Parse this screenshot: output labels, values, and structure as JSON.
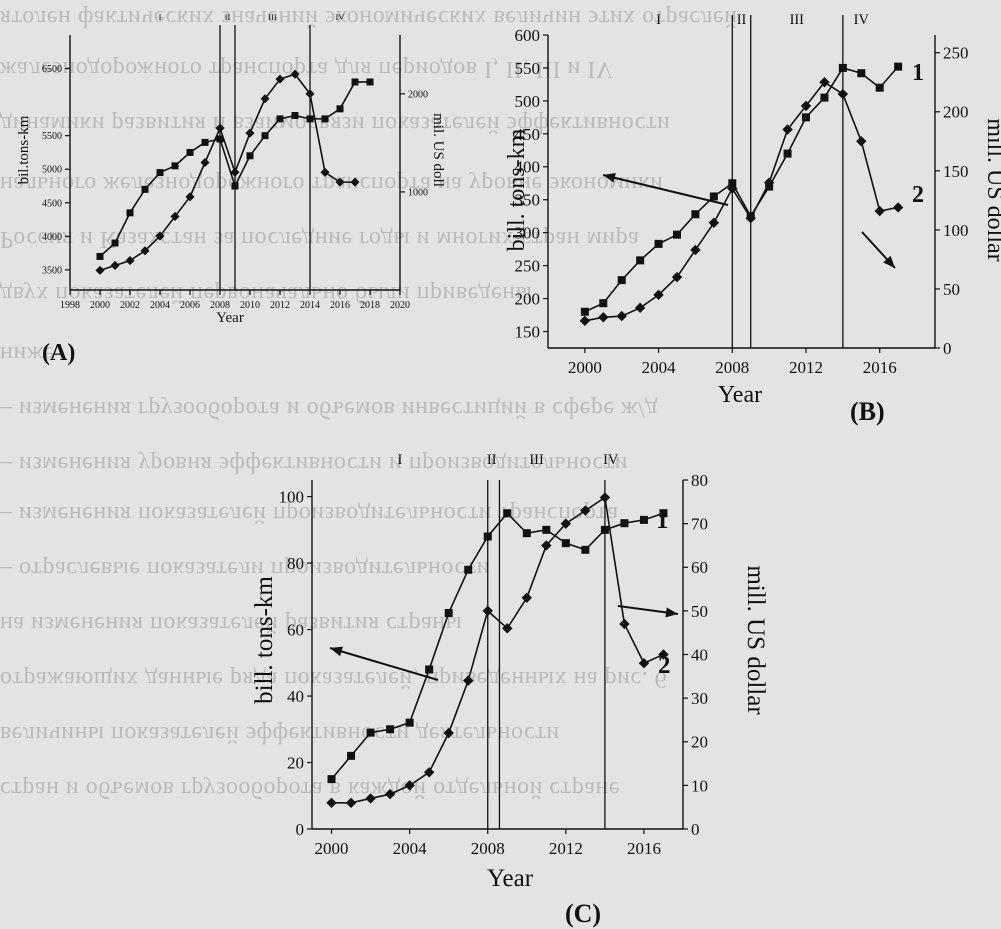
{
  "chart_data": [
    {
      "panel_label": "(A)",
      "type": "line",
      "xlabel": "Year",
      "ylabel": "bil.tons-km",
      "y2label": "mil. US doll",
      "xlim": [
        1998,
        2020
      ],
      "ylim": [
        3200,
        7000
      ],
      "y2lim": [
        0,
        2600
      ],
      "xticks": [
        1998,
        2000,
        2002,
        2004,
        2006,
        2008,
        2010,
        2012,
        2014,
        2016,
        2018,
        2020
      ],
      "yticks": [
        3500,
        4000,
        4500,
        5000,
        5500,
        6500
      ],
      "y2ticks": [
        1000,
        2000
      ],
      "periods": [
        "I",
        "II",
        "III",
        "IV"
      ],
      "dividers": [
        2008,
        2009,
        2014
      ],
      "series": [
        {
          "key": "1",
          "marker": "square",
          "axis": "left",
          "x": [
            2000,
            2001,
            2002,
            2003,
            2004,
            2005,
            2006,
            2007,
            2008,
            2009,
            2010,
            2011,
            2012,
            2013,
            2014,
            2015,
            2016,
            2017,
            2018
          ],
          "values": [
            3700,
            3900,
            4350,
            4700,
            4950,
            5050,
            5250,
            5400,
            5450,
            4750,
            5200,
            5500,
            5750,
            5800,
            5750,
            5750,
            5900,
            6300,
            6300
          ]
        },
        {
          "key": "2",
          "marker": "diamond",
          "axis": "right",
          "x": [
            2000,
            2001,
            2002,
            2003,
            2004,
            2005,
            2006,
            2007,
            2008,
            2009,
            2010,
            2011,
            2012,
            2013,
            2014,
            2015,
            2016,
            2017
          ],
          "values": [
            200,
            250,
            300,
            400,
            550,
            750,
            950,
            1300,
            1650,
            1200,
            1600,
            1950,
            2150,
            2200,
            2000,
            1200,
            1100,
            1100
          ]
        }
      ]
    },
    {
      "panel_label": "(B)",
      "type": "line",
      "xlabel": "Year",
      "ylabel": "bill. tons-km",
      "y2label": "mill. US dollar",
      "xlim": [
        1998,
        2019
      ],
      "ylim": [
        125,
        600
      ],
      "y2lim": [
        0,
        265
      ],
      "xticks": [
        2000,
        2004,
        2008,
        2012,
        2016
      ],
      "yticks": [
        150,
        200,
        250,
        300,
        350,
        400,
        450,
        500,
        550,
        600
      ],
      "y2ticks": [
        0,
        50,
        100,
        150,
        200,
        250
      ],
      "periods": [
        "I",
        "II",
        "III",
        "IV"
      ],
      "dividers": [
        2008,
        2009,
        2014
      ],
      "series_tags": [
        "1",
        "2"
      ],
      "series": [
        {
          "key": "1",
          "marker": "square",
          "axis": "left",
          "x": [
            2000,
            2001,
            2002,
            2003,
            2004,
            2005,
            2006,
            2007,
            2008,
            2009,
            2010,
            2011,
            2012,
            2013,
            2014,
            2015,
            2016,
            2017
          ],
          "values": [
            180,
            193,
            228,
            258,
            283,
            297,
            328,
            355,
            375,
            325,
            370,
            420,
            475,
            505,
            550,
            542,
            520,
            552
          ]
        },
        {
          "key": "2",
          "marker": "diamond",
          "axis": "right",
          "x": [
            2000,
            2001,
            2002,
            2003,
            2004,
            2005,
            2006,
            2007,
            2008,
            2009,
            2010,
            2011,
            2012,
            2013,
            2014,
            2015,
            2016,
            2017
          ],
          "values": [
            23,
            26,
            27,
            34,
            45,
            60,
            83,
            106,
            135,
            110,
            140,
            185,
            205,
            225,
            215,
            175,
            116,
            119
          ]
        }
      ]
    },
    {
      "panel_label": "(C)",
      "type": "line",
      "xlabel": "Year",
      "ylabel": "bill. tons-km",
      "y2label": "mill. US dollar",
      "xlim": [
        1999,
        2018
      ],
      "ylim": [
        0,
        105
      ],
      "y2lim": [
        0,
        80
      ],
      "xticks": [
        2000,
        2004,
        2008,
        2012,
        2016
      ],
      "yticks": [
        0,
        20,
        40,
        60,
        80,
        100
      ],
      "y2ticks": [
        0,
        10,
        20,
        30,
        40,
        50,
        60,
        70,
        80
      ],
      "periods": [
        "I",
        "II",
        "III",
        "IV"
      ],
      "dividers": [
        2008,
        2008.6,
        2014
      ],
      "series_tags": [
        "1",
        "2"
      ],
      "series": [
        {
          "key": "1",
          "marker": "square",
          "axis": "left",
          "x": [
            2000,
            2001,
            2002,
            2003,
            2004,
            2005,
            2006,
            2007,
            2008,
            2009,
            2010,
            2011,
            2012,
            2013,
            2014,
            2015,
            2016,
            2017
          ],
          "values": [
            15,
            22,
            29,
            30,
            32,
            48,
            65,
            78,
            88,
            95,
            89,
            90,
            86,
            84,
            90,
            92,
            93,
            95
          ]
        },
        {
          "key": "2",
          "marker": "diamond",
          "axis": "right",
          "x": [
            2000,
            2001,
            2002,
            2003,
            2004,
            2005,
            2006,
            2007,
            2008,
            2009,
            2010,
            2011,
            2012,
            2013,
            2014,
            2015,
            2016,
            2017
          ],
          "values": [
            6,
            6,
            7,
            8,
            10,
            13,
            22,
            34,
            50,
            46,
            53,
            65,
            70,
            73,
            76,
            47,
            38,
            40
          ]
        }
      ]
    }
  ],
  "background_text": [
    "ятолен фактических значений экономических величин этих отраслей",
    "жалезнодорожного транспорта для периодов I, II, III и IV",
    "динамики развития и взаимосвязи показателей эффективности",
    "нального железнодорожного транспорта на уровне экономики",
    "Россия и Казахстан за последние годы и многих стран мира",
    "двух показателей первоначально были приведены",
    "ниже",
    "– изменения грузооборота и объемов инвестиций в сфере ж/д",
    "– изменения уровня эффективности и производительности",
    "– изменения показателей производительности транспорта",
    "– отраслевые показатели производительности",
    "на изменения показателей развития страны",
    "отражающих данные ряда показателей, приведенных на рис. 6",
    "величины показателей эффективности деятельности",
    "стран и объемов грузооборота в каждой отдельной стране"
  ]
}
